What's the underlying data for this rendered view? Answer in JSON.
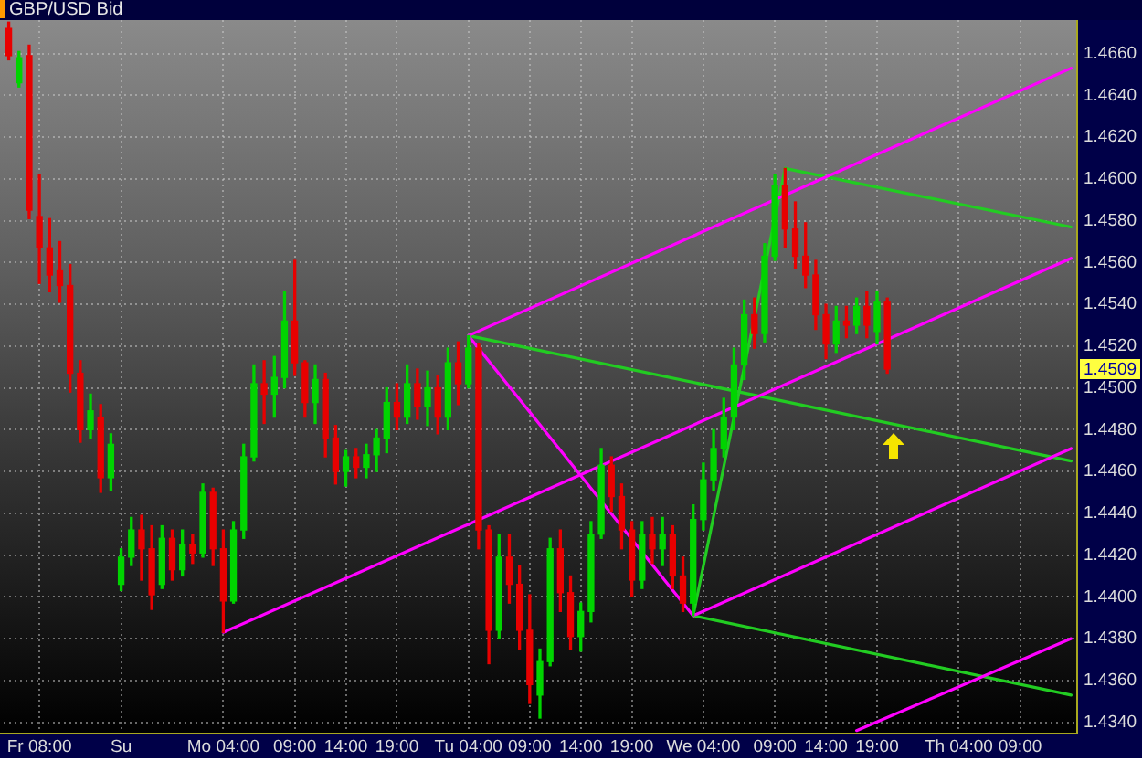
{
  "chart_data": {
    "type": "candlestick",
    "title": "GBP/USD Bid",
    "categories": [
      null,
      null,
      null,
      "Fr 08:00",
      null,
      null,
      null,
      null,
      null,
      null,
      null,
      "Su",
      null,
      null,
      null,
      null,
      null,
      null,
      null,
      null,
      null,
      "Mo 04:00",
      null,
      null,
      null,
      null,
      null,
      null,
      "09:00",
      null,
      null,
      null,
      null,
      "14:00",
      null,
      null,
      null,
      null,
      "19:00",
      null,
      null,
      null,
      null,
      null,
      null,
      "Tu 04:00",
      null,
      null,
      null,
      null,
      null,
      "09:00",
      null,
      null,
      null,
      null,
      "14:00",
      null,
      null,
      null,
      null,
      "19:00",
      null,
      null,
      null,
      null,
      null,
      null,
      "We 04:00",
      null,
      null,
      null,
      null,
      null,
      null,
      "09:00",
      null,
      null,
      null,
      null,
      "14:00",
      null,
      null,
      null,
      null,
      "19:00",
      null,
      null,
      null,
      null,
      null,
      null,
      null,
      "Th 04:00",
      null,
      null,
      null,
      null,
      null,
      "09:00",
      null,
      null,
      null,
      null,
      null
    ],
    "ohlc": [
      [
        1.4672,
        1.4675,
        1.4657,
        1.4659
      ],
      [
        1.4646,
        1.4661,
        1.4644,
        1.4658
      ],
      [
        1.4659,
        1.4664,
        1.4581,
        1.4585
      ],
      [
        1.4582,
        1.4602,
        1.455,
        1.4567
      ],
      [
        1.4567,
        1.4581,
        1.4546,
        1.4554
      ],
      [
        1.4556,
        1.457,
        1.4541,
        1.4549
      ],
      [
        1.4549,
        1.4559,
        1.4498,
        1.4507
      ],
      [
        1.4507,
        1.4513,
        1.4474,
        1.448
      ],
      [
        1.448,
        1.4497,
        1.4476,
        1.4489
      ],
      [
        1.4486,
        1.4492,
        1.445,
        1.4457
      ],
      [
        1.4457,
        1.4478,
        1.4451,
        1.4473
      ],
      [
        1.4406,
        1.4423,
        1.4403,
        1.4419
      ],
      [
        1.4419,
        1.4438,
        1.4415,
        1.4432
      ],
      [
        1.4432,
        1.4439,
        1.4408,
        1.4423
      ],
      [
        1.4423,
        1.4434,
        1.4394,
        1.4401
      ],
      [
        1.4406,
        1.4434,
        1.4404,
        1.4428
      ],
      [
        1.4428,
        1.4432,
        1.4408,
        1.4413
      ],
      [
        1.4413,
        1.4432,
        1.441,
        1.4425
      ],
      [
        1.4425,
        1.443,
        1.4416,
        1.4421
      ],
      [
        1.4421,
        1.4454,
        1.4419,
        1.445
      ],
      [
        1.445,
        1.4452,
        1.4415,
        1.4423
      ],
      [
        1.4423,
        1.4432,
        1.4383,
        1.4398
      ],
      [
        1.4398,
        1.4436,
        1.4397,
        1.4432
      ],
      [
        1.4432,
        1.4473,
        1.4428,
        1.4467
      ],
      [
        1.4467,
        1.4511,
        1.4465,
        1.4502
      ],
      [
        1.4502,
        1.4513,
        1.4483,
        1.4497
      ],
      [
        1.4497,
        1.4515,
        1.4486,
        1.4505
      ],
      [
        1.4505,
        1.4546,
        1.45,
        1.4532
      ],
      [
        1.4532,
        1.4561,
        1.4506,
        1.4512
      ],
      [
        1.4512,
        1.4513,
        1.4486,
        1.4493
      ],
      [
        1.4493,
        1.4511,
        1.4483,
        1.4504
      ],
      [
        1.4504,
        1.4507,
        1.4467,
        1.4476
      ],
      [
        1.4476,
        1.4482,
        1.4454,
        1.446
      ],
      [
        1.446,
        1.447,
        1.4453,
        1.4467
      ],
      [
        1.4467,
        1.4471,
        1.4457,
        1.4462
      ],
      [
        1.4462,
        1.4473,
        1.4457,
        1.4468
      ],
      [
        1.4468,
        1.448,
        1.446,
        1.4476
      ],
      [
        1.4476,
        1.45,
        1.4469,
        1.4493
      ],
      [
        1.4493,
        1.4502,
        1.448,
        1.4486
      ],
      [
        1.4486,
        1.4511,
        1.4483,
        1.4502
      ],
      [
        1.4502,
        1.4509,
        1.4485,
        1.4491
      ],
      [
        1.4491,
        1.4508,
        1.4482,
        1.45
      ],
      [
        1.45,
        1.4506,
        1.4478,
        1.4486
      ],
      [
        1.4486,
        1.4519,
        1.448,
        1.4512
      ],
      [
        1.4512,
        1.4522,
        1.4492,
        1.4502
      ],
      [
        1.4502,
        1.4525,
        1.45,
        1.4519
      ],
      [
        1.4519,
        1.4521,
        1.4423,
        1.4432
      ],
      [
        1.4432,
        1.4434,
        1.4368,
        1.4384
      ],
      [
        1.4384,
        1.443,
        1.438,
        1.4419
      ],
      [
        1.4419,
        1.443,
        1.4397,
        1.4406
      ],
      [
        1.4406,
        1.4415,
        1.4375,
        1.4384
      ],
      [
        1.4384,
        1.4401,
        1.4349,
        1.4358
      ],
      [
        1.4353,
        1.4375,
        1.4342,
        1.4369
      ],
      [
        1.4369,
        1.4428,
        1.4367,
        1.4423
      ],
      [
        1.4423,
        1.4432,
        1.4393,
        1.4402
      ],
      [
        1.4402,
        1.441,
        1.4375,
        1.4381
      ],
      [
        1.4381,
        1.4397,
        1.4374,
        1.4393
      ],
      [
        1.4393,
        1.4436,
        1.4388,
        1.443
      ],
      [
        1.443,
        1.4471,
        1.4428,
        1.4463
      ],
      [
        1.4463,
        1.4467,
        1.4441,
        1.4448
      ],
      [
        1.4448,
        1.4454,
        1.4423,
        1.4432
      ],
      [
        1.4432,
        1.4436,
        1.44,
        1.4408
      ],
      [
        1.4408,
        1.4436,
        1.4404,
        1.443
      ],
      [
        1.443,
        1.4438,
        1.4416,
        1.4423
      ],
      [
        1.4423,
        1.4438,
        1.4415,
        1.443
      ],
      [
        1.443,
        1.4434,
        1.4404,
        1.441
      ],
      [
        1.441,
        1.4419,
        1.4393,
        1.4397
      ],
      [
        1.4397,
        1.4444,
        1.4391,
        1.4437
      ],
      [
        1.4437,
        1.4464,
        1.4432,
        1.4456
      ],
      [
        1.4456,
        1.448,
        1.4451,
        1.4471
      ],
      [
        1.4471,
        1.4495,
        1.4467,
        1.4486
      ],
      [
        1.4486,
        1.4519,
        1.448,
        1.4511
      ],
      [
        1.4511,
        1.4542,
        1.4504,
        1.4535
      ],
      [
        1.4535,
        1.4543,
        1.4519,
        1.4526
      ],
      [
        1.4526,
        1.4569,
        1.4522,
        1.4563
      ],
      [
        1.4563,
        1.4602,
        1.4561,
        1.4597
      ],
      [
        1.4597,
        1.4605,
        1.4567,
        1.4576
      ],
      [
        1.4576,
        1.4589,
        1.4557,
        1.4563
      ],
      [
        1.4563,
        1.4579,
        1.4548,
        1.4554
      ],
      [
        1.4554,
        1.4561,
        1.4528,
        1.4535
      ],
      [
        1.4535,
        1.454,
        1.4514,
        1.4521
      ],
      [
        1.4521,
        1.4539,
        1.4517,
        1.4532
      ],
      [
        1.4532,
        1.4539,
        1.4524,
        1.453
      ],
      [
        1.453,
        1.4543,
        1.4526,
        1.4539
      ],
      [
        1.4539,
        1.4546,
        1.4524,
        1.453
      ],
      [
        1.4527,
        1.4546,
        1.4521,
        1.4541
      ],
      [
        1.4541,
        1.4543,
        1.4507,
        1.4509
      ],
      null,
      null,
      null,
      null,
      null,
      null,
      null,
      null,
      null,
      null,
      null,
      null,
      null,
      null,
      null,
      null,
      null,
      null
    ],
    "colors": [
      "#e80000",
      "#00d400",
      "#e80000",
      "#e80000",
      "#e80000",
      "#e80000",
      "#e80000",
      "#e80000",
      "#00d400",
      "#e80000",
      "#00d400",
      "#00d400",
      "#00d400",
      "#e80000",
      "#e80000",
      "#00d400",
      "#e80000",
      "#00d400",
      "#e80000",
      "#00d400",
      "#e80000",
      "#e80000",
      "#00d400",
      "#00d400",
      "#00d400",
      "#e80000",
      "#00d400",
      "#00d400",
      "#e80000",
      "#e80000",
      "#00d400",
      "#e80000",
      "#e80000",
      "#00d400",
      "#e80000",
      "#00d400",
      "#00d400",
      "#00d400",
      "#e80000",
      "#00d400",
      "#e80000",
      "#00d400",
      "#e80000",
      "#00d400",
      "#e80000",
      "#00d400",
      "#e80000",
      "#e80000",
      "#00d400",
      "#e80000",
      "#e80000",
      "#e80000",
      "#00d400",
      "#00d400",
      "#e80000",
      "#e80000",
      "#00d400",
      "#00d400",
      "#00d400",
      "#e80000",
      "#e80000",
      "#e80000",
      "#00d400",
      "#e80000",
      "#00d400",
      "#e80000",
      "#e80000",
      "#00d400",
      "#00d400",
      "#00d400",
      "#00d400",
      "#00d400",
      "#00d400",
      "#e80000",
      "#00d400",
      "#00d400",
      "#e80000",
      "#e80000",
      "#e80000",
      "#e80000",
      "#e80000",
      "#00d400",
      "#e80000",
      "#00d400",
      "#e80000",
      "#00d400",
      "#e80000",
      null,
      null,
      null,
      null,
      null,
      null,
      null,
      null,
      null,
      null,
      null,
      null,
      null,
      null,
      null,
      null,
      null,
      null
    ],
    "ylim": [
      1.4335,
      1.4676
    ],
    "yticks": [
      {
        "value": 1.434,
        "label": "1.4340"
      },
      {
        "value": 1.436,
        "label": "1.4360"
      },
      {
        "value": 1.438,
        "label": "1.4380"
      },
      {
        "value": 1.44,
        "label": "1.4400"
      },
      {
        "value": 1.442,
        "label": "1.4420"
      },
      {
        "value": 1.444,
        "label": "1.4440"
      },
      {
        "value": 1.446,
        "label": "1.4460"
      },
      {
        "value": 1.448,
        "label": "1.4480"
      },
      {
        "value": 1.45,
        "label": "1.4500"
      },
      {
        "value": 1.452,
        "label": "1.4520"
      },
      {
        "value": 1.454,
        "label": "1.4540"
      },
      {
        "value": 1.456,
        "label": "1.4560"
      },
      {
        "value": 1.458,
        "label": "1.4580"
      },
      {
        "value": 1.46,
        "label": "1.4600"
      },
      {
        "value": 1.462,
        "label": "1.4620"
      },
      {
        "value": 1.464,
        "label": "1.4640"
      },
      {
        "value": 1.466,
        "label": "1.4660"
      }
    ],
    "grid": true,
    "annotations": [
      {
        "text": "1.4509",
        "y": 1.4509
      }
    ],
    "series": [
      {
        "type": "line",
        "color": "#ff00ff",
        "values": [
          null,
          null,
          null,
          null,
          null,
          null,
          null,
          null,
          null,
          null,
          null,
          null,
          null,
          null,
          null,
          null,
          null,
          null,
          null,
          null,
          null,
          1.4383,
          null,
          null,
          null,
          null,
          null,
          null,
          null,
          null,
          null,
          null,
          null,
          null,
          null,
          null,
          null,
          null,
          null,
          null,
          null,
          null,
          null,
          null,
          null,
          null,
          null,
          null,
          null,
          null,
          null,
          null,
          null,
          null,
          null,
          null,
          null,
          null,
          null,
          null,
          null,
          null,
          null,
          null,
          null,
          null,
          null,
          null,
          null,
          null,
          null,
          null,
          null,
          null,
          null,
          null,
          null,
          null,
          null,
          null,
          null,
          null,
          null,
          null,
          null,
          null,
          null,
          null,
          null,
          null,
          null,
          null,
          null,
          null,
          null,
          null,
          null,
          null,
          null,
          null,
          null,
          null,
          null,
          null,
          1.4562
        ]
      },
      {
        "type": "line",
        "color": "#ff00ff",
        "values": [
          null,
          null,
          null,
          null,
          null,
          null,
          null,
          null,
          null,
          null,
          null,
          null,
          null,
          null,
          null,
          null,
          null,
          null,
          null,
          null,
          null,
          null,
          null,
          null,
          null,
          null,
          null,
          null,
          null,
          null,
          null,
          null,
          null,
          null,
          null,
          null,
          null,
          null,
          null,
          null,
          null,
          null,
          null,
          null,
          null,
          1.4525,
          null,
          null,
          null,
          null,
          null,
          null,
          null,
          null,
          null,
          null,
          null,
          null,
          null,
          null,
          null,
          null,
          null,
          null,
          null,
          null,
          null,
          null,
          null,
          null,
          null,
          null,
          null,
          null,
          null,
          null,
          null,
          null,
          null,
          null,
          null,
          null,
          null,
          null,
          null,
          null,
          null,
          null,
          null,
          null,
          null,
          null,
          null,
          null,
          null,
          null,
          null,
          null,
          null,
          null,
          null,
          null,
          null,
          null,
          1.4653
        ]
      },
      {
        "type": "line",
        "color": "#ff00ff",
        "values": [
          null,
          null,
          null,
          null,
          null,
          null,
          null,
          null,
          null,
          null,
          null,
          null,
          null,
          null,
          null,
          null,
          null,
          null,
          null,
          null,
          null,
          null,
          null,
          null,
          null,
          null,
          null,
          null,
          null,
          null,
          null,
          null,
          null,
          null,
          null,
          null,
          null,
          null,
          null,
          null,
          null,
          null,
          null,
          null,
          null,
          null,
          null,
          null,
          null,
          null,
          null,
          null,
          null,
          null,
          null,
          null,
          null,
          null,
          null,
          null,
          null,
          null,
          null,
          null,
          null,
          null,
          null,
          1.4391,
          null,
          null,
          null,
          null,
          null,
          null,
          null,
          null,
          null,
          null,
          null,
          null,
          null,
          null,
          null,
          null,
          null,
          null,
          null,
          null,
          null,
          null,
          null,
          null,
          null,
          null,
          null,
          null,
          null,
          null,
          null,
          null,
          null,
          null,
          null,
          null,
          1.4471
        ]
      },
      {
        "type": "line",
        "color": "#ff00ff",
        "values": [
          null,
          null,
          null,
          null,
          null,
          null,
          null,
          null,
          null,
          null,
          null,
          null,
          null,
          null,
          null,
          null,
          null,
          null,
          null,
          null,
          null,
          null,
          null,
          null,
          null,
          null,
          null,
          null,
          null,
          null,
          null,
          null,
          null,
          null,
          null,
          null,
          null,
          null,
          null,
          null,
          null,
          null,
          null,
          null,
          null,
          1.4525,
          null,
          null,
          null,
          null,
          null,
          null,
          null,
          null,
          null,
          null,
          null,
          null,
          null,
          null,
          null,
          null,
          null,
          null,
          null,
          null,
          null,
          1.4391,
          null,
          null,
          null,
          null,
          null,
          null,
          null,
          null,
          null,
          null,
          null,
          null,
          null,
          null,
          null,
          null,
          null,
          null,
          null,
          null,
          null,
          null,
          null,
          null,
          null,
          null,
          null,
          null,
          null,
          null,
          null,
          null,
          null,
          null,
          null,
          null,
          null
        ]
      },
      {
        "type": "line",
        "color": "#ff00ff",
        "values": [
          null,
          null,
          null,
          null,
          null,
          null,
          null,
          null,
          null,
          null,
          null,
          null,
          null,
          null,
          null,
          null,
          null,
          null,
          null,
          null,
          null,
          null,
          null,
          null,
          null,
          null,
          null,
          null,
          null,
          null,
          null,
          null,
          null,
          null,
          null,
          null,
          null,
          null,
          null,
          null,
          null,
          null,
          null,
          null,
          null,
          null,
          null,
          null,
          null,
          null,
          null,
          null,
          null,
          null,
          null,
          null,
          null,
          null,
          null,
          null,
          null,
          null,
          null,
          null,
          null,
          null,
          null,
          null,
          null,
          null,
          null,
          null,
          null,
          null,
          null,
          null,
          null,
          null,
          null,
          null,
          null,
          null,
          null,
          1.4336,
          null,
          null,
          null,
          null,
          null,
          null,
          null,
          null,
          null,
          null,
          null,
          null,
          null,
          null,
          null,
          null,
          null,
          null,
          null,
          null,
          1.438
        ]
      },
      {
        "type": "line",
        "color": "#22cc22",
        "values": [
          null,
          null,
          null,
          null,
          null,
          null,
          null,
          null,
          null,
          null,
          null,
          null,
          null,
          null,
          null,
          null,
          null,
          null,
          null,
          null,
          null,
          null,
          null,
          null,
          null,
          null,
          null,
          null,
          null,
          null,
          null,
          null,
          null,
          null,
          null,
          null,
          null,
          null,
          null,
          null,
          null,
          null,
          null,
          null,
          null,
          1.4525,
          null,
          null,
          null,
          null,
          null,
          null,
          null,
          null,
          null,
          null,
          null,
          null,
          null,
          null,
          null,
          null,
          null,
          null,
          null,
          null,
          null,
          null,
          null,
          null,
          null,
          null,
          null,
          null,
          null,
          null,
          null,
          null,
          null,
          null,
          null,
          null,
          null,
          null,
          null,
          null,
          null,
          null,
          null,
          null,
          null,
          null,
          null,
          null,
          null,
          null,
          null,
          null,
          null,
          null,
          null,
          null,
          null,
          null,
          1.4465
        ]
      },
      {
        "type": "line",
        "color": "#22cc22",
        "values": [
          null,
          null,
          null,
          null,
          null,
          null,
          null,
          null,
          null,
          null,
          null,
          null,
          null,
          null,
          null,
          null,
          null,
          null,
          null,
          null,
          null,
          null,
          null,
          null,
          null,
          null,
          null,
          null,
          null,
          null,
          null,
          null,
          null,
          null,
          null,
          null,
          null,
          null,
          null,
          null,
          null,
          null,
          null,
          null,
          null,
          null,
          null,
          null,
          null,
          null,
          null,
          null,
          null,
          null,
          null,
          null,
          null,
          null,
          null,
          null,
          null,
          null,
          null,
          null,
          null,
          null,
          null,
          null,
          null,
          null,
          null,
          null,
          null,
          null,
          null,
          null,
          1.4605,
          null,
          null,
          null,
          null,
          null,
          null,
          null,
          null,
          null,
          null,
          null,
          null,
          null,
          null,
          null,
          null,
          null,
          null,
          null,
          null,
          null,
          null,
          null,
          null,
          null,
          null,
          null,
          1.4577
        ]
      },
      {
        "type": "line",
        "color": "#22cc22",
        "values": [
          null,
          null,
          null,
          null,
          null,
          null,
          null,
          null,
          null,
          null,
          null,
          null,
          null,
          null,
          null,
          null,
          null,
          null,
          null,
          null,
          null,
          null,
          null,
          null,
          null,
          null,
          null,
          null,
          null,
          null,
          null,
          null,
          null,
          null,
          null,
          null,
          null,
          null,
          null,
          null,
          null,
          null,
          null,
          null,
          null,
          null,
          null,
          null,
          null,
          null,
          null,
          null,
          null,
          null,
          null,
          null,
          null,
          null,
          null,
          null,
          null,
          null,
          null,
          null,
          null,
          null,
          null,
          1.4391,
          null,
          null,
          null,
          null,
          null,
          null,
          null,
          null,
          null,
          null,
          null,
          null,
          null,
          null,
          null,
          null,
          null,
          null,
          null,
          null,
          null,
          null,
          null,
          null,
          null,
          null,
          null,
          null,
          null,
          null,
          null,
          null,
          null,
          null,
          null,
          null,
          1.4353
        ]
      },
      {
        "type": "line",
        "color": "#22cc22",
        "values": [
          null,
          null,
          null,
          null,
          null,
          null,
          null,
          null,
          null,
          null,
          null,
          null,
          null,
          null,
          null,
          null,
          null,
          null,
          null,
          null,
          null,
          null,
          null,
          null,
          null,
          null,
          null,
          null,
          null,
          null,
          null,
          null,
          null,
          null,
          null,
          null,
          null,
          null,
          null,
          null,
          null,
          null,
          null,
          null,
          null,
          null,
          null,
          null,
          null,
          null,
          null,
          null,
          null,
          null,
          null,
          null,
          null,
          null,
          null,
          null,
          null,
          null,
          null,
          null,
          null,
          null,
          null,
          1.4391,
          null,
          null,
          null,
          null,
          null,
          null,
          null,
          null,
          1.4605,
          null,
          null,
          null,
          null,
          null,
          null,
          null,
          null,
          null,
          null,
          null,
          null,
          null,
          null,
          null,
          null,
          null,
          null,
          null,
          null,
          null,
          null,
          null,
          null,
          null,
          null,
          null,
          null
        ]
      }
    ]
  }
}
